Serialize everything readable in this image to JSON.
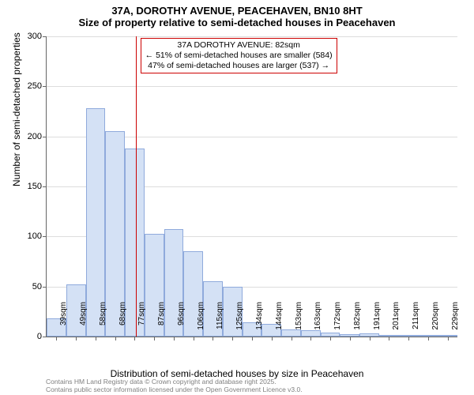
{
  "title_line1": "37A, DOROTHY AVENUE, PEACEHAVEN, BN10 8HT",
  "title_line2": "Size of property relative to semi-detached houses in Peacehaven",
  "ylabel": "Number of semi-detached properties",
  "xlabel": "Distribution of semi-detached houses by size in Peacehaven",
  "chart": {
    "type": "histogram",
    "ylim": [
      0,
      300
    ],
    "ytick_step": 50,
    "bar_fill": "#d4e1f5",
    "bar_stroke": "#8faadc",
    "grid_color": "#dddddd",
    "background_color": "#ffffff",
    "categories": [
      "39sqm",
      "49sqm",
      "58sqm",
      "68sqm",
      "77sqm",
      "87sqm",
      "96sqm",
      "106sqm",
      "115sqm",
      "125sqm",
      "134sqm",
      "144sqm",
      "153sqm",
      "163sqm",
      "172sqm",
      "182sqm",
      "191sqm",
      "201sqm",
      "211sqm",
      "220sqm",
      "229sqm"
    ],
    "values": [
      18,
      52,
      228,
      205,
      188,
      103,
      107,
      85,
      55,
      50,
      14,
      13,
      7,
      6,
      4,
      2,
      3,
      1,
      0,
      1,
      0
    ]
  },
  "marker": {
    "position_index": 4.55,
    "color": "#cc0000",
    "annotation_line1": "37A DOROTHY AVENUE: 82sqm",
    "annotation_line2": "← 51% of semi-detached houses are smaller (584)",
    "annotation_line3": "47% of semi-detached houses are larger (537) →",
    "box_border": "#cc0000"
  },
  "footer_line1": "Contains HM Land Registry data © Crown copyright and database right 2025.",
  "footer_line2": "Contains public sector information licensed under the Open Government Licence v3.0."
}
